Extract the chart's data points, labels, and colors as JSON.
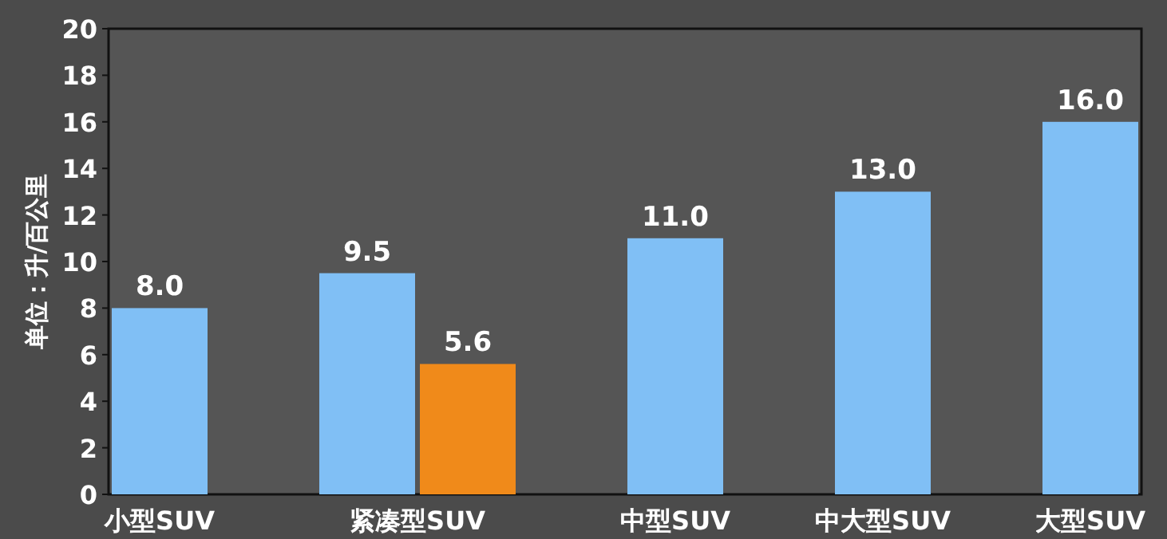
{
  "chart_data": {
    "type": "bar",
    "ylabel": "单位：升/百公里",
    "categories": [
      "小型SUV",
      "紧凑型SUV",
      "中型SUV",
      "中大型SUV",
      "大型SUV"
    ],
    "series": [
      {
        "color": "#80bff5",
        "values": [
          8.0,
          9.5,
          11.0,
          13.0,
          16.0
        ],
        "value_labels": [
          "8.0",
          "9.5",
          "11.0",
          "13.0",
          "16.0"
        ]
      },
      {
        "color": "#f08a1a",
        "values": [
          null,
          5.6,
          null,
          null,
          null
        ],
        "value_labels": [
          null,
          "5.6",
          null,
          null,
          null
        ]
      }
    ],
    "ylim": [
      0,
      20
    ],
    "yticks": [
      0,
      2,
      4,
      6,
      8,
      10,
      12,
      14,
      16,
      18,
      20
    ],
    "grid": false
  }
}
